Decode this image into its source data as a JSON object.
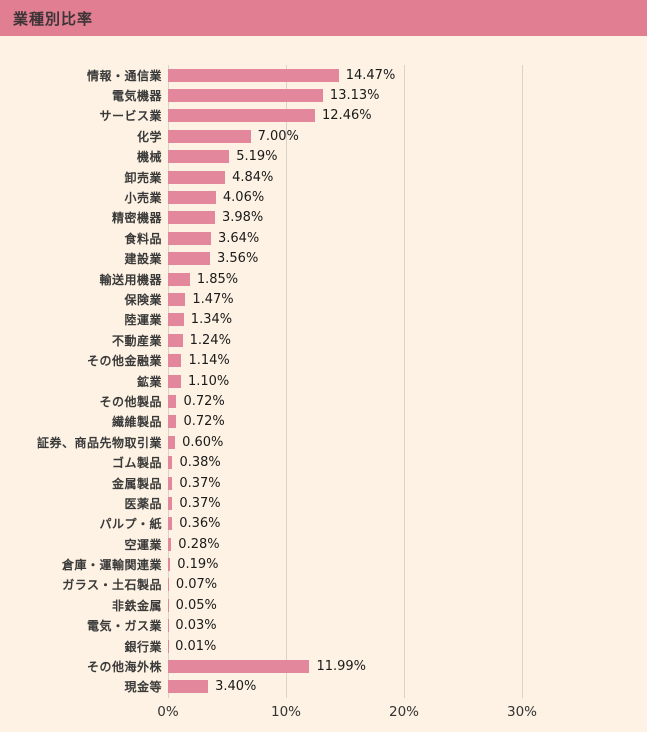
{
  "header": {
    "title": "業種別比率"
  },
  "colors": {
    "header_bg": "#e17e92",
    "bar": "#e3879c",
    "background": "#fdf2e3",
    "gridline": "#d9d3cb",
    "label_text": "#3a3a3a",
    "value_text": "#1a1a1a"
  },
  "chart_data": {
    "type": "bar",
    "orientation": "horizontal",
    "title": "業種別比率",
    "xlabel": "",
    "ylabel": "",
    "xlim": [
      0,
      40
    ],
    "grid": true,
    "x_ticks": [
      {
        "label": "0%",
        "value": 0
      },
      {
        "label": "10%",
        "value": 10
      },
      {
        "label": "20%",
        "value": 20
      },
      {
        "label": "30%",
        "value": 30
      }
    ],
    "categories": [
      "情報・通信業",
      "電気機器",
      "サービス業",
      "化学",
      "機械",
      "卸売業",
      "小売業",
      "精密機器",
      "食料品",
      "建設業",
      "輸送用機器",
      "保険業",
      "陸運業",
      "不動産業",
      "その他金融業",
      "鉱業",
      "その他製品",
      "繊維製品",
      "証券、商品先物取引業",
      "ゴム製品",
      "金属製品",
      "医薬品",
      "パルプ・紙",
      "空運業",
      "倉庫・運輸関連業",
      "ガラス・土石製品",
      "非鉄金属",
      "電気・ガス業",
      "銀行業",
      "その他海外株",
      "現金等"
    ],
    "values": [
      14.47,
      13.13,
      12.46,
      7.0,
      5.19,
      4.84,
      4.06,
      3.98,
      3.64,
      3.56,
      1.85,
      1.47,
      1.34,
      1.24,
      1.14,
      1.1,
      0.72,
      0.72,
      0.6,
      0.38,
      0.37,
      0.37,
      0.36,
      0.28,
      0.19,
      0.07,
      0.05,
      0.03,
      0.01,
      11.99,
      3.4
    ],
    "value_labels": [
      "14.47%",
      "13.13%",
      "12.46%",
      "7.00%",
      "5.19%",
      "4.84%",
      "4.06%",
      "3.98%",
      "3.64%",
      "3.56%",
      "1.85%",
      "1.47%",
      "1.34%",
      "1.24%",
      "1.14%",
      "1.10%",
      "0.72%",
      "0.72%",
      "0.60%",
      "0.38%",
      "0.37%",
      "0.37%",
      "0.36%",
      "0.28%",
      "0.19%",
      "0.07%",
      "0.05%",
      "0.03%",
      "0.01%",
      "11.99%",
      "3.40%"
    ]
  }
}
